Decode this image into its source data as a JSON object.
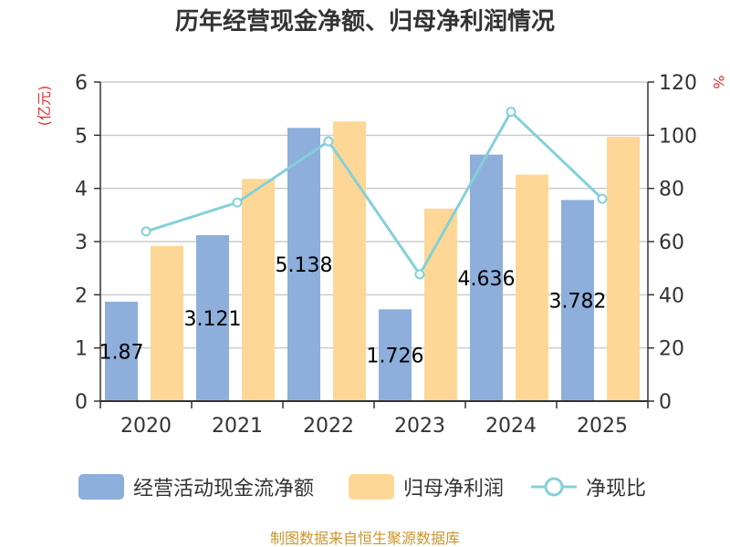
{
  "chart_data": {
    "type": "bar",
    "title": "历年经营现金净额、归母净利润情况",
    "categories": [
      "2020",
      "2021",
      "2022",
      "2023",
      "2024",
      "2025"
    ],
    "series": [
      {
        "name": "经营活动现金流净额",
        "type": "bar",
        "axis": "left",
        "color": "#8eaedb",
        "values": [
          1.87,
          3.121,
          5.138,
          1.726,
          4.636,
          3.782
        ],
        "labels": [
          "1.87",
          "3.121",
          "5.138",
          "1.726",
          "4.636",
          "3.782"
        ]
      },
      {
        "name": "归母净利润",
        "type": "bar",
        "axis": "left",
        "color": "#fed797",
        "values": [
          2.92,
          4.18,
          5.26,
          3.62,
          4.26,
          4.97
        ]
      },
      {
        "name": "净现比",
        "type": "line",
        "axis": "right",
        "color": "#84d0d8",
        "values": [
          63.8,
          74.7,
          97.7,
          47.7,
          108.8,
          76.1
        ]
      }
    ],
    "yleft": {
      "unit": "(亿元)",
      "min": 0,
      "max": 6,
      "ticks": [
        "0",
        "1",
        "2",
        "3",
        "4",
        "5",
        "6"
      ]
    },
    "yright": {
      "unit": "%",
      "min": 0,
      "max": 120,
      "ticks": [
        "0",
        "20",
        "40",
        "60",
        "80",
        "100",
        "120"
      ]
    },
    "grid": true,
    "legend_position": "bottom"
  },
  "source": "制图数据来自恒生聚源数据库"
}
